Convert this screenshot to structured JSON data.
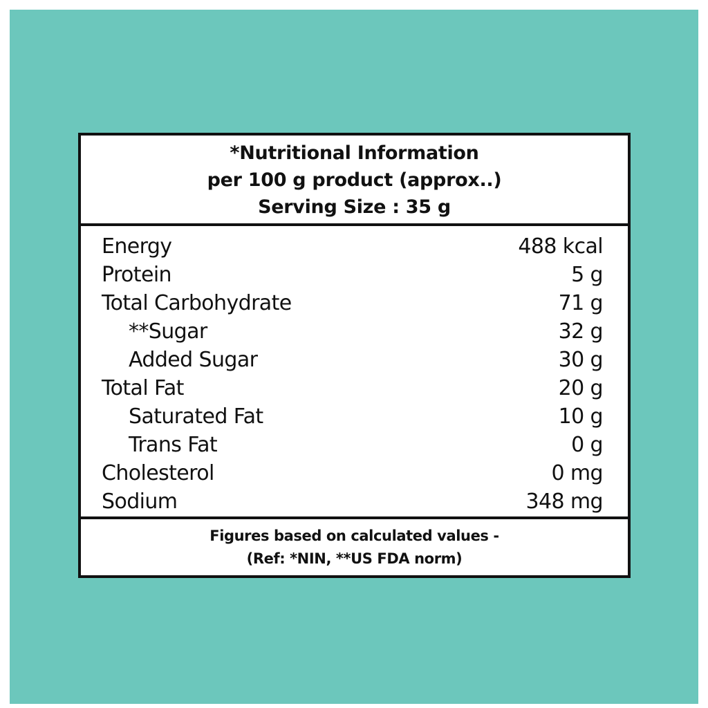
{
  "header": {
    "line1": "*Nutritional Information",
    "line2": "per 100 g product (approx..)",
    "line3": "Serving Size : 35 g"
  },
  "nutrients": [
    {
      "name": "Energy",
      "value": "488 kcal"
    },
    {
      "name": "Protein",
      "value": "5 g"
    },
    {
      "name": "Total Carbohydrate",
      "value": "71 g"
    },
    {
      "name": "**Sugar",
      "value": "32 g"
    },
    {
      "name": "Added Sugar",
      "value": "30 g"
    },
    {
      "name": "Total Fat",
      "value": "20 g"
    },
    {
      "name": "Saturated Fat",
      "value": "10 g"
    },
    {
      "name": "Trans Fat",
      "value": "0 g"
    },
    {
      "name": "Cholesterol",
      "value": "0 mg"
    },
    {
      "name": "Sodium",
      "value": "348 mg"
    }
  ],
  "footer": {
    "line1": "Figures based on calculated values -",
    "line2": "(Ref: *NIN, **US FDA norm)"
  },
  "colors": {
    "background": "#6cc7bc",
    "panel": "#ffffff",
    "ink": "#111111"
  }
}
